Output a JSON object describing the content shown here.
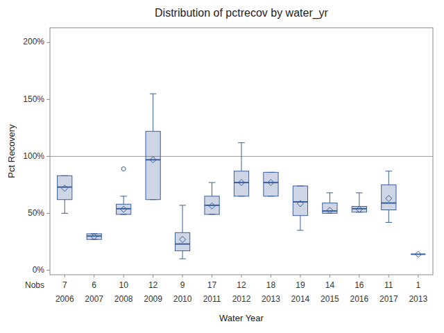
{
  "chart_data": {
    "type": "box",
    "title": "Distribution of pctrecov by water_yr",
    "x_label": "Water Year",
    "y_label": "Pct Recovery",
    "categories": [
      "2006",
      "2007",
      "2008",
      "2009",
      "2010",
      "2011",
      "2012",
      "2013",
      "2014",
      "2015",
      "2016",
      "2017",
      "2013"
    ],
    "nobs_label": "Nobs",
    "nobs": [
      7,
      6,
      10,
      12,
      9,
      17,
      12,
      18,
      19,
      14,
      16,
      11,
      1
    ],
    "boxes": [
      {
        "q1": 0.62,
        "median": 0.73,
        "q3": 0.83,
        "whislo": 0.5,
        "whishi": 0.83,
        "mean": 0.72,
        "fliers": []
      },
      {
        "q1": 0.27,
        "median": 0.3,
        "q3": 0.32,
        "whislo": 0.27,
        "whishi": 0.32,
        "mean": 0.295,
        "fliers": []
      },
      {
        "q1": 0.49,
        "median": 0.54,
        "q3": 0.58,
        "whislo": 0.49,
        "whishi": 0.65,
        "mean": 0.535,
        "fliers": [
          0.89
        ]
      },
      {
        "q1": 0.62,
        "median": 0.97,
        "q3": 1.22,
        "whislo": 0.62,
        "whishi": 1.55,
        "mean": 0.97,
        "fliers": []
      },
      {
        "q1": 0.17,
        "median": 0.23,
        "q3": 0.33,
        "whislo": 0.1,
        "whishi": 0.57,
        "mean": 0.27,
        "fliers": []
      },
      {
        "q1": 0.49,
        "median": 0.57,
        "q3": 0.65,
        "whislo": 0.49,
        "whishi": 0.77,
        "mean": 0.565,
        "fliers": []
      },
      {
        "q1": 0.65,
        "median": 0.77,
        "q3": 0.87,
        "whislo": 0.65,
        "whishi": 1.12,
        "mean": 0.77,
        "fliers": []
      },
      {
        "q1": 0.65,
        "median": 0.77,
        "q3": 0.86,
        "whislo": 0.65,
        "whishi": 0.86,
        "mean": 0.77,
        "fliers": []
      },
      {
        "q1": 0.48,
        "median": 0.6,
        "q3": 0.74,
        "whislo": 0.35,
        "whishi": 0.74,
        "mean": 0.585,
        "fliers": []
      },
      {
        "q1": 0.5,
        "median": 0.52,
        "q3": 0.59,
        "whislo": 0.5,
        "whishi": 0.68,
        "mean": 0.525,
        "fliers": []
      },
      {
        "q1": 0.51,
        "median": 0.54,
        "q3": 0.56,
        "whislo": 0.51,
        "whishi": 0.68,
        "mean": 0.535,
        "fliers": []
      },
      {
        "q1": 0.53,
        "median": 0.59,
        "q3": 0.75,
        "whislo": 0.42,
        "whishi": 0.87,
        "mean": 0.63,
        "fliers": []
      },
      {
        "q1": 0.14,
        "median": 0.14,
        "q3": 0.14,
        "whislo": 0.14,
        "whishi": 0.14,
        "mean": 0.14,
        "fliers": []
      }
    ],
    "color": "#3a5d9c",
    "reference_line": 1.0,
    "ylim": [
      -0.04,
      2.13
    ],
    "yticks": [
      {
        "value": 0.0,
        "label": "0%"
      },
      {
        "value": 0.5,
        "label": "50%"
      },
      {
        "value": 1.0,
        "label": "100%"
      },
      {
        "value": 1.5,
        "label": "150%"
      },
      {
        "value": 2.0,
        "label": "200%"
      }
    ],
    "grid": false
  }
}
